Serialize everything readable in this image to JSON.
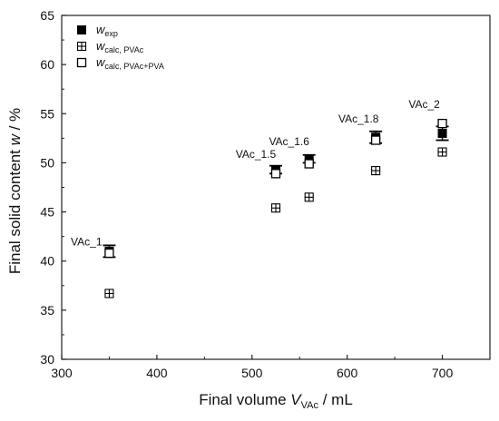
{
  "chart_data": {
    "type": "scatter",
    "xlabel": {
      "main": "Final volume ",
      "var": "V",
      "sub": "VAc",
      "unit": " / mL"
    },
    "ylabel": {
      "main": "Final solid content ",
      "var": "w",
      "unit": " / %"
    },
    "xlim": [
      300,
      750
    ],
    "ylim": [
      30,
      65
    ],
    "xticks": [
      "300",
      "400",
      "500",
      "600",
      "700"
    ],
    "yticks": [
      "30",
      "35",
      "40",
      "45",
      "50",
      "55",
      "60",
      "65"
    ],
    "legend_position": "top-left",
    "legend": [
      {
        "var": "w",
        "sub": "exp",
        "marker": "filled-square"
      },
      {
        "var": "w",
        "sub": "calc, PVAc",
        "marker": "crossed-square"
      },
      {
        "var": "w",
        "sub": "calc, PVAc+PVA",
        "marker": "open-square"
      }
    ],
    "series": [
      {
        "name": "w_exp",
        "marker": "filled-square",
        "points": [
          {
            "x": 350,
            "y": 41.0,
            "err": 0.6
          },
          {
            "x": 525,
            "y": 49.3,
            "err": 0.4
          },
          {
            "x": 560,
            "y": 50.4,
            "err": 0.4
          },
          {
            "x": 630,
            "y": 52.6,
            "err": 0.6
          },
          {
            "x": 700,
            "y": 53.0,
            "err": 0.7
          }
        ]
      },
      {
        "name": "w_calc, PVAc",
        "marker": "crossed-square",
        "points": [
          {
            "x": 350,
            "y": 36.7
          },
          {
            "x": 525,
            "y": 45.4
          },
          {
            "x": 560,
            "y": 46.5
          },
          {
            "x": 630,
            "y": 49.2
          },
          {
            "x": 700,
            "y": 51.1
          }
        ]
      },
      {
        "name": "w_calc, PVAc+PVA",
        "marker": "open-square",
        "points": [
          {
            "x": 350,
            "y": 40.8
          },
          {
            "x": 525,
            "y": 48.9
          },
          {
            "x": 560,
            "y": 49.9
          },
          {
            "x": 630,
            "y": 52.3
          },
          {
            "x": 700,
            "y": 54.0
          }
        ]
      }
    ],
    "annotations": [
      {
        "text": "VAc_1",
        "x": 326,
        "y": 41.6
      },
      {
        "text": "VAc_1.5",
        "x": 504,
        "y": 50.5
      },
      {
        "text": "VAc_1.6",
        "x": 539,
        "y": 51.8
      },
      {
        "text": "VAc_1.8",
        "x": 612,
        "y": 54.1
      },
      {
        "text": "VAc_2",
        "x": 681,
        "y": 55.6
      }
    ]
  }
}
